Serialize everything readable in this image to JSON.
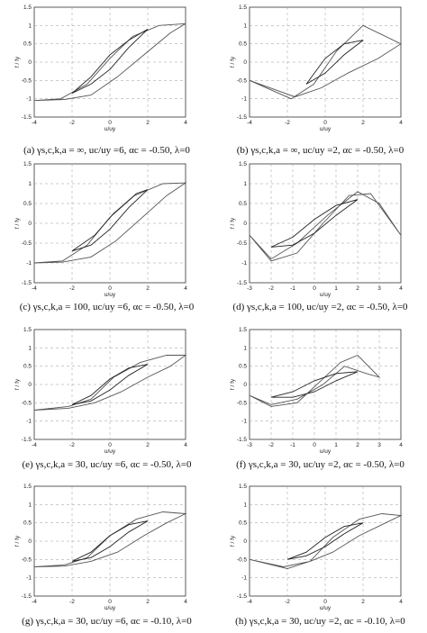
{
  "captions": [
    "(a) γs,c,k,a = ∞, uc/uy =6, αc = -0.50, λ=0",
    "(b) γs,c,k,a = ∞, uc/uy =2, αc = -0.50, λ=0",
    "(c) γs,c,k,a = 100, uc/uy =6, αc = -0.50, λ=0",
    "(d) γs,c,k,a = 100, uc/uy =2, αc = -0.50, λ=0",
    "(e) γs,c,k,a = 30, uc/uy =6, αc = -0.50, λ=0",
    "(f) γs,c,k,a = 30, uc/uy =2, αc = -0.50, λ=0",
    "(g) γs,c,k,a = 30, uc/uy =6, αc = -0.10, λ=0",
    "(h) γs,c,k,a = 30, uc/uy =2, αc = -0.10, λ=0"
  ],
  "chart_data": [
    {
      "type": "line",
      "panel": "a",
      "xlabel": "u/uy",
      "ylabel": "f / fy",
      "xlim": [
        -4,
        4
      ],
      "ylim": [
        -1.5,
        1.5
      ],
      "xticks": [
        "-4",
        "-2",
        "0",
        "2",
        "4"
      ],
      "yticks": [
        "1.5",
        "1",
        "0.5",
        "0",
        "-0.5",
        "-1",
        "-1.5"
      ],
      "grid": true,
      "series": [
        {
          "x": [
            -4,
            -2.6,
            -1.2,
            0,
            1.2,
            2.6,
            4,
            3.2,
            1.8,
            0.4,
            -1,
            -2.4,
            -4
          ],
          "y": [
            -1.05,
            -1.0,
            -0.6,
            0.1,
            0.7,
            1.0,
            1.05,
            0.8,
            0.2,
            -0.4,
            -0.9,
            -1.02,
            -1.05
          ]
        },
        {
          "x": [
            -2,
            -1,
            0,
            1,
            2,
            1,
            0,
            -1,
            -2
          ],
          "y": [
            -0.85,
            -0.4,
            0.2,
            0.6,
            0.9,
            0.4,
            -0.2,
            -0.6,
            -0.85
          ]
        }
      ]
    },
    {
      "type": "line",
      "panel": "b",
      "xlabel": "u/uy",
      "ylabel": "f / fy",
      "xlim": [
        -4,
        4
      ],
      "ylim": [
        -1.5,
        1.5
      ],
      "xticks": [
        "-4",
        "-2",
        "0",
        "2",
        "4"
      ],
      "yticks": [
        "1.5",
        "1",
        "0.5",
        "0",
        "-0.5",
        "-1",
        "-1.5"
      ],
      "grid": true,
      "series": [
        {
          "x": [
            -4,
            -1.8,
            -0.6,
            0.6,
            2,
            4,
            2.8,
            1.2,
            -0.2,
            -1.6,
            -4
          ],
          "y": [
            -0.5,
            -1.0,
            -0.6,
            0.3,
            1.0,
            0.5,
            0.1,
            -0.3,
            -0.7,
            -0.95,
            -0.5
          ]
        },
        {
          "x": [
            -1,
            0,
            1,
            2,
            1,
            0,
            -1
          ],
          "y": [
            -0.6,
            0.1,
            0.5,
            0.6,
            0.2,
            -0.3,
            -0.6
          ]
        }
      ]
    },
    {
      "type": "line",
      "panel": "c",
      "xlabel": "u/uy",
      "ylabel": "f / fy",
      "xlim": [
        -4,
        4
      ],
      "ylim": [
        -1.5,
        1.5
      ],
      "xticks": [
        "-4",
        "-2",
        "0",
        "2",
        "4"
      ],
      "yticks": [
        "1.5",
        "1",
        "0.5",
        "0",
        "-0.5",
        "-1",
        "-1.5"
      ],
      "grid": true,
      "series": [
        {
          "x": [
            -4,
            -2.5,
            -1.2,
            0,
            1.3,
            2.8,
            4,
            3,
            1.6,
            0.3,
            -1,
            -2.5,
            -4
          ],
          "y": [
            -1.0,
            -0.95,
            -0.55,
            0.15,
            0.7,
            1.0,
            1.02,
            0.7,
            0.1,
            -0.45,
            -0.85,
            -0.98,
            -1.0
          ]
        },
        {
          "x": [
            -2,
            -0.8,
            0.2,
            1.4,
            2,
            1,
            0,
            -1,
            -2
          ],
          "y": [
            -0.7,
            -0.3,
            0.25,
            0.75,
            0.85,
            0.4,
            -0.15,
            -0.55,
            -0.7
          ]
        }
      ]
    },
    {
      "type": "line",
      "panel": "d",
      "xlabel": "u/uy",
      "ylabel": "f / fy",
      "xlim": [
        -3,
        4
      ],
      "ylim": [
        -1.5,
        1.5
      ],
      "xticks": [
        "-3",
        "-2",
        "-1",
        "0",
        "1",
        "2",
        "3",
        "4"
      ],
      "yticks": [
        "1.5",
        "1",
        "0.5",
        "0",
        "-0.5",
        "-1",
        "-1.5"
      ],
      "grid": true,
      "series": [
        {
          "x": [
            -3,
            -2,
            -0.8,
            0.4,
            1.6,
            2.6,
            4,
            3,
            2,
            0.6,
            -0.8,
            -2,
            -3
          ],
          "y": [
            -0.3,
            -0.95,
            -0.75,
            0.0,
            0.7,
            0.75,
            -0.3,
            0.5,
            0.8,
            0.2,
            -0.5,
            -0.9,
            -0.3
          ]
        },
        {
          "x": [
            -2,
            -1,
            0,
            1,
            2,
            1,
            0,
            -1,
            -2
          ],
          "y": [
            -0.6,
            -0.35,
            0.1,
            0.45,
            0.6,
            0.2,
            -0.25,
            -0.55,
            -0.6
          ]
        }
      ]
    },
    {
      "type": "line",
      "panel": "e",
      "xlabel": "u/uy",
      "ylabel": "f / fy",
      "xlim": [
        -4,
        4
      ],
      "ylim": [
        -1.5,
        1.5
      ],
      "xticks": [
        "-4",
        "-2",
        "0",
        "2",
        "4"
      ],
      "yticks": [
        "1.5",
        "1",
        "0.5",
        "0",
        "-0.5",
        "-1",
        "-1.5"
      ],
      "grid": true,
      "series": [
        {
          "x": [
            -4,
            -2.2,
            -1,
            0.2,
            1.6,
            3,
            4,
            3.2,
            2,
            0.6,
            -0.8,
            -2.2,
            -4
          ],
          "y": [
            -0.7,
            -0.6,
            -0.4,
            0.2,
            0.6,
            0.8,
            0.8,
            0.5,
            0.2,
            -0.2,
            -0.5,
            -0.65,
            -0.7
          ]
        },
        {
          "x": [
            -2,
            -1,
            0,
            1,
            2,
            1,
            0,
            -1,
            -2
          ],
          "y": [
            -0.55,
            -0.3,
            0.15,
            0.45,
            0.55,
            0.25,
            -0.15,
            -0.45,
            -0.55
          ]
        }
      ]
    },
    {
      "type": "line",
      "panel": "f",
      "xlabel": "u/uy",
      "ylabel": "f / fy",
      "xlim": [
        -3,
        4
      ],
      "ylim": [
        -1.5,
        1.5
      ],
      "xticks": [
        "-3",
        "-2",
        "-1",
        "0",
        "1",
        "2",
        "3",
        "4"
      ],
      "yticks": [
        "1.5",
        "1",
        "0.5",
        "0",
        "-0.5",
        "-1",
        "-1.5"
      ],
      "grid": true,
      "series": [
        {
          "x": [
            -3,
            -2,
            -0.8,
            0.3,
            1.2,
            2,
            3,
            2.4,
            1.4,
            0.4,
            -0.8,
            -2,
            -3
          ],
          "y": [
            -0.3,
            -0.6,
            -0.5,
            0.1,
            0.6,
            0.8,
            0.2,
            0.3,
            0.5,
            0.0,
            -0.4,
            -0.55,
            -0.3
          ]
        },
        {
          "x": [
            -2,
            -1,
            0,
            1,
            2,
            1,
            0,
            -1,
            -2
          ],
          "y": [
            -0.35,
            -0.2,
            0.1,
            0.3,
            0.35,
            0.1,
            -0.2,
            -0.35,
            -0.35
          ]
        }
      ]
    },
    {
      "type": "line",
      "panel": "g",
      "xlabel": "u/uy",
      "ylabel": "f / fy",
      "xlim": [
        -4,
        4
      ],
      "ylim": [
        -1.5,
        1.5
      ],
      "xticks": [
        "-4",
        "-2",
        "0",
        "2",
        "4"
      ],
      "yticks": [
        "1.5",
        "1",
        "0.5",
        "0",
        "-0.5",
        "-1",
        "-1.5"
      ],
      "grid": true,
      "series": [
        {
          "x": [
            -4,
            -2.4,
            -1.2,
            0,
            1.4,
            2.8,
            4,
            3,
            1.8,
            0.4,
            -1,
            -2.4,
            -4
          ],
          "y": [
            -0.7,
            -0.65,
            -0.45,
            0.15,
            0.6,
            0.8,
            0.75,
            0.5,
            0.15,
            -0.3,
            -0.55,
            -0.68,
            -0.7
          ]
        },
        {
          "x": [
            -2,
            -1,
            0,
            1,
            2,
            1,
            0,
            -1,
            -2
          ],
          "y": [
            -0.55,
            -0.3,
            0.15,
            0.45,
            0.55,
            0.25,
            -0.15,
            -0.45,
            -0.55
          ]
        }
      ]
    },
    {
      "type": "line",
      "panel": "h",
      "xlabel": "u/uy",
      "ylabel": "f / fy",
      "xlim": [
        -4,
        4
      ],
      "ylim": [
        -1.5,
        1.5
      ],
      "xticks": [
        "-4",
        "-2",
        "0",
        "2",
        "4"
      ],
      "yticks": [
        "1.5",
        "1",
        "0.5",
        "0",
        "-0.5",
        "-1",
        "-1.5"
      ],
      "grid": true,
      "series": [
        {
          "x": [
            -4,
            -2,
            -0.8,
            0.4,
            1.8,
            3,
            4,
            3,
            1.8,
            0.4,
            -0.8,
            -2.2,
            -4
          ],
          "y": [
            -0.5,
            -0.75,
            -0.55,
            0.1,
            0.6,
            0.75,
            0.7,
            0.45,
            0.15,
            -0.3,
            -0.55,
            -0.7,
            -0.5
          ]
        },
        {
          "x": [
            -2,
            -1,
            0,
            1,
            2,
            1,
            0,
            -1,
            -2
          ],
          "y": [
            -0.5,
            -0.3,
            0.1,
            0.4,
            0.5,
            0.2,
            -0.15,
            -0.4,
            -0.5
          ]
        }
      ]
    }
  ]
}
